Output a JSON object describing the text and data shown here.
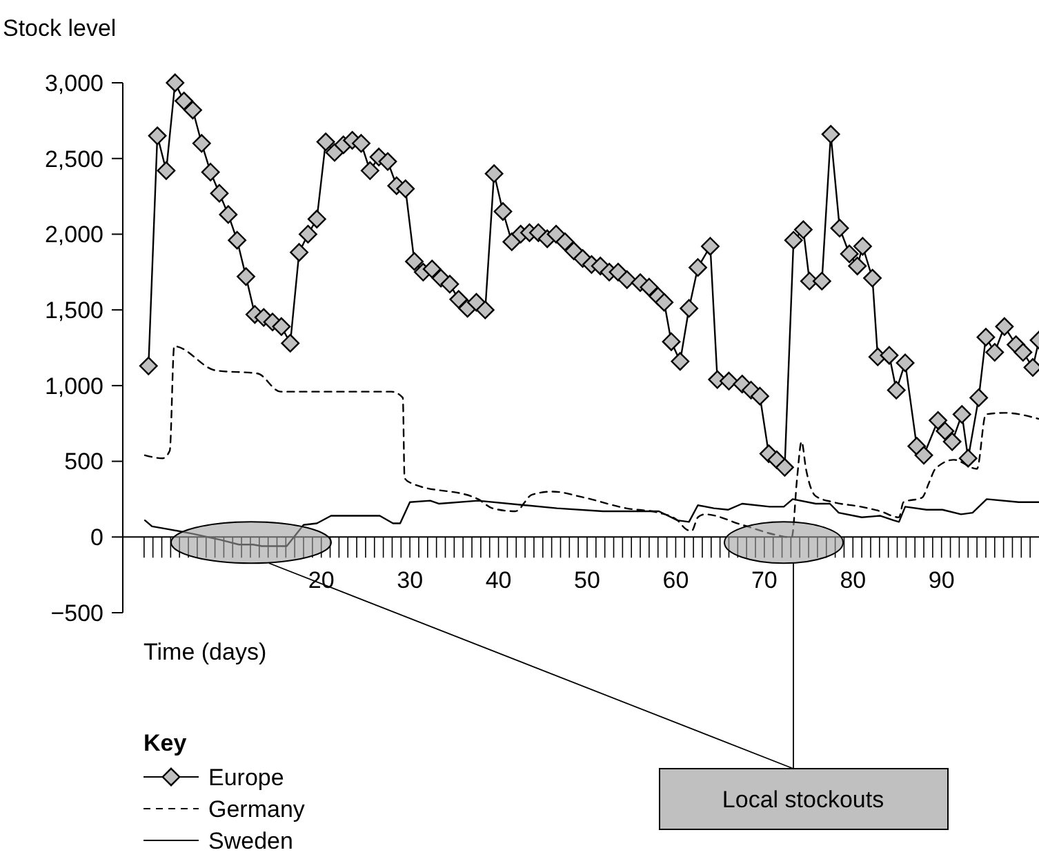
{
  "chart_data": {
    "type": "line",
    "ylabel": "Stock level",
    "xlabel": "Time (days)",
    "legend_title": "Key",
    "legend": "bottom left",
    "grid": false,
    "annotations": [
      "Local stockouts"
    ],
    "xlim": [
      -2.4,
      101
    ],
    "ylim": [
      -500,
      3000
    ],
    "yticks": [
      {
        "value": -500,
        "label": "−500"
      },
      0,
      500,
      {
        "value": 1000,
        "label": "1,000"
      },
      {
        "value": 1500,
        "label": "1,500"
      },
      {
        "value": 2000,
        "label": "2,000"
      },
      {
        "value": 2500,
        "label": "2,500"
      },
      {
        "value": 3000,
        "label": "3,000"
      }
    ],
    "xticks": [
      {
        "value": 0,
        "label": null
      },
      {
        "value": 1,
        "label": null
      },
      {
        "value": 2,
        "label": null
      },
      {
        "value": 3,
        "label": null
      },
      {
        "value": 4,
        "label": null
      },
      {
        "value": 5,
        "label": null
      },
      {
        "value": 6,
        "label": null
      },
      {
        "value": 7,
        "label": null
      },
      {
        "value": 8,
        "label": null
      },
      {
        "value": 9,
        "label": null
      },
      {
        "value": 10,
        "label": null
      },
      {
        "value": 11,
        "label": null
      },
      {
        "value": 12,
        "label": null
      },
      {
        "value": 13,
        "label": null
      },
      {
        "value": 14,
        "label": null
      },
      {
        "value": 15,
        "label": null
      },
      {
        "value": 16,
        "label": null
      },
      {
        "value": 17,
        "label": null
      },
      {
        "value": 18,
        "label": null
      },
      {
        "value": 19,
        "label": null
      },
      20,
      {
        "value": 21,
        "label": null
      },
      {
        "value": 22,
        "label": null
      },
      {
        "value": 23,
        "label": null
      },
      {
        "value": 24,
        "label": null
      },
      {
        "value": 25,
        "label": null
      },
      {
        "value": 26,
        "label": null
      },
      {
        "value": 27,
        "label": null
      },
      {
        "value": 28,
        "label": null
      },
      {
        "value": 29,
        "label": null
      },
      30,
      {
        "value": 31,
        "label": null
      },
      {
        "value": 32,
        "label": null
      },
      {
        "value": 33,
        "label": null
      },
      {
        "value": 34,
        "label": null
      },
      {
        "value": 35,
        "label": null
      },
      {
        "value": 36,
        "label": null
      },
      {
        "value": 37,
        "label": null
      },
      {
        "value": 38,
        "label": null
      },
      {
        "value": 39,
        "label": null
      },
      40,
      {
        "value": 41,
        "label": null
      },
      {
        "value": 42,
        "label": null
      },
      {
        "value": 43,
        "label": null
      },
      {
        "value": 44,
        "label": null
      },
      {
        "value": 45,
        "label": null
      },
      {
        "value": 46,
        "label": null
      },
      {
        "value": 47,
        "label": null
      },
      {
        "value": 48,
        "label": null
      },
      {
        "value": 49,
        "label": null
      },
      50,
      {
        "value": 51,
        "label": null
      },
      {
        "value": 52,
        "label": null
      },
      {
        "value": 53,
        "label": null
      },
      {
        "value": 54,
        "label": null
      },
      {
        "value": 55,
        "label": null
      },
      {
        "value": 56,
        "label": null
      },
      {
        "value": 57,
        "label": null
      },
      {
        "value": 58,
        "label": null
      },
      {
        "value": 59,
        "label": null
      },
      60,
      {
        "value": 61,
        "label": null
      },
      {
        "value": 62,
        "label": null
      },
      {
        "value": 63,
        "label": null
      },
      {
        "value": 64,
        "label": null
      },
      {
        "value": 65,
        "label": null
      },
      {
        "value": 66,
        "label": null
      },
      {
        "value": 67,
        "label": null
      },
      {
        "value": 68,
        "label": null
      },
      {
        "value": 69,
        "label": null
      },
      70,
      {
        "value": 71,
        "label": null
      },
      {
        "value": 72,
        "label": null
      },
      {
        "value": 73,
        "label": null
      },
      {
        "value": 74,
        "label": null
      },
      {
        "value": 75,
        "label": null
      },
      {
        "value": 76,
        "label": null
      },
      {
        "value": 77,
        "label": null
      },
      {
        "value": 78,
        "label": null
      },
      {
        "value": 79,
        "label": null
      },
      80,
      {
        "value": 81,
        "label": null
      },
      {
        "value": 82,
        "label": null
      },
      {
        "value": 83,
        "label": null
      },
      {
        "value": 84,
        "label": null
      },
      {
        "value": 85,
        "label": null
      },
      {
        "value": 86,
        "label": null
      },
      {
        "value": 87,
        "label": null
      },
      {
        "value": 88,
        "label": null
      },
      {
        "value": 89,
        "label": null
      },
      90,
      {
        "value": 91,
        "label": null
      },
      {
        "value": 92,
        "label": null
      },
      {
        "value": 93,
        "label": null
      },
      {
        "value": 94,
        "label": null
      },
      {
        "value": 95,
        "label": null
      },
      {
        "value": 96,
        "label": null
      },
      {
        "value": 97,
        "label": null
      },
      {
        "value": 98,
        "label": null
      },
      {
        "value": 99,
        "label": null
      },
      {
        "value": 100,
        "label": null
      }
    ],
    "series": [
      {
        "name": "Europe",
        "color": "#000000",
        "marker": "diamond",
        "line_style": "solid",
        "x": [
          0.5,
          1.5,
          2.5,
          3.5,
          4.5,
          5.5,
          6.5,
          7.5,
          8.5,
          9.5,
          10.5,
          11.5,
          12.5,
          13.5,
          14.5,
          15.5,
          16.5,
          17.5,
          18.5,
          19.5,
          20.5,
          21.5,
          22.5,
          23.5,
          24.5,
          25.5,
          26.5,
          27.5,
          28.5,
          29.5,
          30.5,
          31.5,
          32.5,
          33.5,
          34.5,
          35.5,
          36.5,
          37.5,
          38.5,
          39.5,
          40.5,
          41.5,
          42.5,
          43.5,
          44.5,
          45.5,
          46.5,
          47.5,
          48.5,
          49.5,
          50.5,
          51.5,
          52.5,
          53.5,
          54.5,
          56,
          57,
          58,
          58.7,
          59.5,
          60.5,
          61.5,
          62.5,
          63.9,
          64.7,
          66,
          67.5,
          68.5,
          69.5,
          70.5,
          71.4,
          72.3,
          73.3,
          74.4,
          75.1,
          76.5,
          77.5,
          78.5,
          79.6,
          80.5,
          81.1,
          82.2,
          82.8,
          84.1,
          84.9,
          85.9,
          87.2,
          88,
          89.6,
          90.4,
          91.2,
          92.3,
          93,
          94.2,
          95,
          96,
          97.1,
          98.4,
          99.2,
          100.3,
          101
        ],
        "values": [
          1130,
          2650,
          2420,
          3000,
          2880,
          2820,
          2600,
          2410,
          2270,
          2130,
          1960,
          1720,
          1470,
          1450,
          1420,
          1390,
          1280,
          1880,
          2000,
          2100,
          2610,
          2540,
          2590,
          2620,
          2600,
          2420,
          2510,
          2480,
          2320,
          2300,
          1820,
          1750,
          1770,
          1710,
          1670,
          1570,
          1510,
          1550,
          1500,
          2400,
          2150,
          1950,
          2000,
          2010,
          2010,
          1970,
          2000,
          1950,
          1890,
          1840,
          1800,
          1790,
          1750,
          1750,
          1700,
          1680,
          1650,
          1590,
          1550,
          1290,
          1160,
          1510,
          1780,
          1920,
          1040,
          1030,
          1010,
          970,
          930,
          550,
          510,
          460,
          1960,
          2030,
          1690,
          1690,
          2660,
          2040,
          1870,
          1790,
          1920,
          1710,
          1190,
          1200,
          970,
          1150,
          600,
          540,
          770,
          700,
          630,
          810,
          520,
          920,
          1320,
          1220,
          1390,
          1270,
          1220,
          1120,
          1300
        ]
      },
      {
        "name": "Germany",
        "color": "#000000",
        "marker": "none",
        "line_style": "dashed",
        "x": [
          0.1,
          2.1,
          2.9,
          3.4,
          8.1,
          12.8,
          15.4,
          27.9,
          29.2,
          29.4,
          30,
          37.7,
          39.3,
          41.9,
          43.8,
          46.1,
          49.7,
          54.4,
          58.1,
          60.2,
          61.2,
          61.8,
          62.5,
          63.3,
          67.5,
          71.6,
          72.6,
          73.1,
          73.7,
          74.2,
          74.7,
          75.8,
          77.8,
          80.9,
          83.1,
          85.2,
          85.7,
          87.8,
          88.6,
          89.3,
          91.4,
          94,
          95,
          97.1,
          101
        ],
        "values": [
          540,
          520,
          570,
          1260,
          1100,
          1080,
          960,
          960,
          920,
          390,
          360,
          250,
          190,
          170,
          280,
          300,
          260,
          190,
          160,
          110,
          50,
          40,
          130,
          150,
          80,
          10,
          0,
          0,
          390,
          630,
          450,
          270,
          230,
          200,
          170,
          130,
          230,
          260,
          360,
          450,
          510,
          450,
          810,
          820,
          780
        ]
      },
      {
        "name": "Sweden",
        "color": "#000000",
        "marker": "none",
        "line_style": "solid",
        "x": [
          0.1,
          0.9,
          2.9,
          5.6,
          8.7,
          10.7,
          12.3,
          13.3,
          16.1,
          18,
          19.5,
          21.1,
          26.6,
          28.1,
          28.9,
          30,
          32.3,
          33.3,
          37.7,
          43,
          46.6,
          51.8,
          58.1,
          60.2,
          61.5,
          62.5,
          64.3,
          65.9,
          67.5,
          70.6,
          72.2,
          73.2,
          75.8,
          77.4,
          78.4,
          81,
          83.1,
          84.6,
          85.2,
          85.9,
          88.3,
          90.1,
          92.2,
          93.5,
          95.1,
          98.7,
          101
        ],
        "values": [
          110,
          70,
          50,
          20,
          -20,
          -50,
          -50,
          -60,
          -60,
          80,
          90,
          140,
          140,
          90,
          90,
          230,
          240,
          220,
          240,
          210,
          190,
          170,
          170,
          110,
          100,
          210,
          190,
          180,
          220,
          200,
          200,
          250,
          220,
          220,
          160,
          130,
          140,
          110,
          100,
          200,
          180,
          180,
          150,
          160,
          250,
          230,
          230
        ]
      }
    ]
  }
}
